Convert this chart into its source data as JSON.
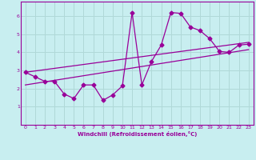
{
  "bg_color": "#c8eef0",
  "line_color": "#990099",
  "grid_color": "#b0d8d8",
  "xlabel": "Windchill (Refroidissement éolien,°C)",
  "xlabel_color": "#990099",
  "xlim": [
    -0.5,
    23.5
  ],
  "ylim": [
    0,
    6.8
  ],
  "xticks": [
    0,
    1,
    2,
    3,
    4,
    5,
    6,
    7,
    8,
    9,
    10,
    11,
    12,
    13,
    14,
    15,
    16,
    17,
    18,
    19,
    20,
    21,
    22,
    23
  ],
  "yticks": [
    1,
    2,
    3,
    4,
    5,
    6
  ],
  "line1_x": [
    0,
    1,
    2,
    3,
    4,
    5,
    6,
    7,
    8,
    9,
    10,
    11,
    12,
    13,
    14,
    15,
    16,
    17,
    18,
    19,
    20,
    21,
    22,
    23
  ],
  "line1_y": [
    2.9,
    2.65,
    2.4,
    2.4,
    1.7,
    1.45,
    2.2,
    2.2,
    1.35,
    1.65,
    2.15,
    6.2,
    2.2,
    3.5,
    4.4,
    6.2,
    6.15,
    5.4,
    5.2,
    4.75,
    4.05,
    4.0,
    4.4,
    4.45
  ],
  "line2_x": [
    0,
    23
  ],
  "line2_y": [
    2.2,
    4.15
  ],
  "line3_x": [
    0,
    23
  ],
  "line3_y": [
    2.9,
    4.55
  ],
  "marker": "D",
  "markersize": 2.5,
  "linewidth": 0.9
}
